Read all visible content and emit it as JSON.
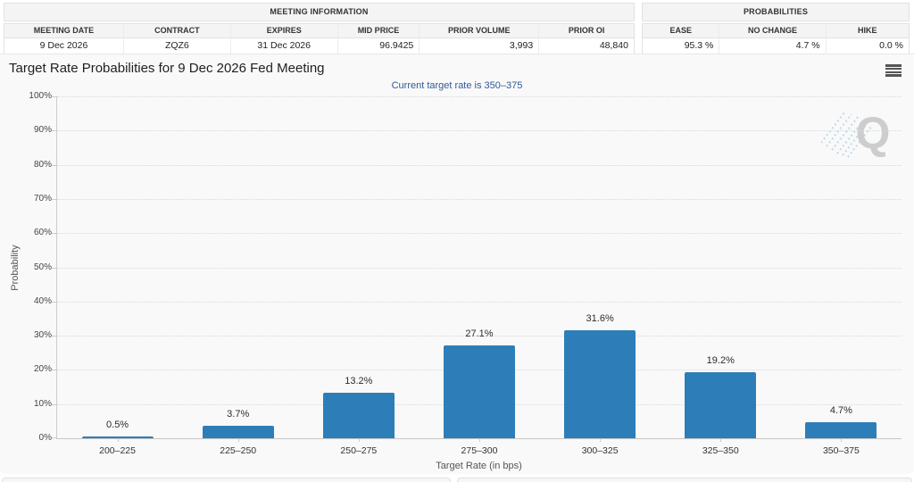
{
  "meeting_information": {
    "title": "MEETING INFORMATION",
    "columns": [
      "MEETING DATE",
      "CONTRACT",
      "EXPIRES",
      "MID PRICE",
      "PRIOR VOLUME",
      "PRIOR OI"
    ],
    "values": [
      "9 Dec 2026",
      "ZQZ6",
      "31 Dec 2026",
      "96.9425",
      "3,993",
      "48,840"
    ]
  },
  "probabilities_summary": {
    "title": "PROBABILITIES",
    "columns": [
      "EASE",
      "NO CHANGE",
      "HIKE"
    ],
    "values": [
      "95.3 %",
      "4.7 %",
      "0.0 %"
    ]
  },
  "chart_data": {
    "type": "bar",
    "title": "Target Rate Probabilities for 9 Dec 2026 Fed Meeting",
    "subtitle": "Current target rate is 350–375",
    "categories": [
      "200–225",
      "225–250",
      "250–275",
      "275–300",
      "300–325",
      "325–350",
      "350–375"
    ],
    "values": [
      0.5,
      3.7,
      13.2,
      27.1,
      31.6,
      19.2,
      4.7
    ],
    "data_labels": [
      "0.5%",
      "3.7%",
      "13.2%",
      "27.1%",
      "31.6%",
      "19.2%",
      "4.7%"
    ],
    "xlabel": "Target Rate (in bps)",
    "ylabel": "Probability",
    "ylim": [
      0,
      100
    ],
    "ytick_step": 10,
    "ytick_suffix": "%",
    "bar_color": "#2d7eb8",
    "grid": "horizontal-dotted",
    "legend": "none"
  },
  "icons": {
    "chart_menu": "hamburger-menu",
    "watermark_letter": "Q"
  },
  "colors": {
    "bar": "#2d7eb8",
    "subtitle_text": "#30599b",
    "gridline": "#d9d9d9",
    "axis_line": "#cccccc",
    "panel_bg": "#f9f9f9"
  }
}
